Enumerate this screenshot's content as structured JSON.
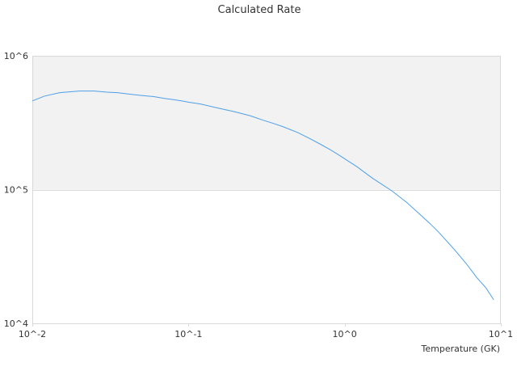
{
  "chart_data": {
    "type": "line",
    "title": "Calculated Rate",
    "xlabel": "Temperature (GK)",
    "ylabel": "",
    "xscale": "log",
    "yscale": "log",
    "xlim": [
      0.01,
      10
    ],
    "ylim": [
      10000,
      1000000
    ],
    "x_tick_labels": [
      "10^-2",
      "10^-1",
      "10^0",
      "10^1"
    ],
    "y_tick_labels": [
      "10^4",
      "10^5",
      "10^6"
    ],
    "x_ticks": [
      0.01,
      0.1,
      1,
      10
    ],
    "y_ticks": [
      10000,
      100000,
      1000000
    ],
    "grid": true,
    "band": {
      "from": 100000,
      "to": 1000000,
      "color": "#f2f2f2"
    },
    "legend": "none",
    "series": [
      {
        "color": "#4f9fe8",
        "x": [
          0.01,
          0.012,
          0.015,
          0.02,
          0.025,
          0.03,
          0.035,
          0.04,
          0.05,
          0.06,
          0.07,
          0.08,
          0.09,
          0.1,
          0.12,
          0.15,
          0.2,
          0.25,
          0.3,
          0.35,
          0.4,
          0.5,
          0.6,
          0.7,
          0.8,
          0.9,
          1,
          1.2,
          1.5,
          2,
          2.5,
          3,
          3.5,
          4,
          5,
          6,
          7,
          8,
          9
        ],
        "y": [
          460000,
          500000,
          530000,
          545000,
          545000,
          535000,
          530000,
          520000,
          505000,
          495000,
          480000,
          470000,
          460000,
          450000,
          435000,
          410000,
          380000,
          355000,
          330000,
          312000,
          296000,
          267000,
          240000,
          218000,
          200000,
          184000,
          170000,
          148000,
          122000,
          98000,
          80000,
          66000,
          56000,
          48000,
          36000,
          28000,
          22000,
          18500,
          15000
        ]
      }
    ]
  }
}
